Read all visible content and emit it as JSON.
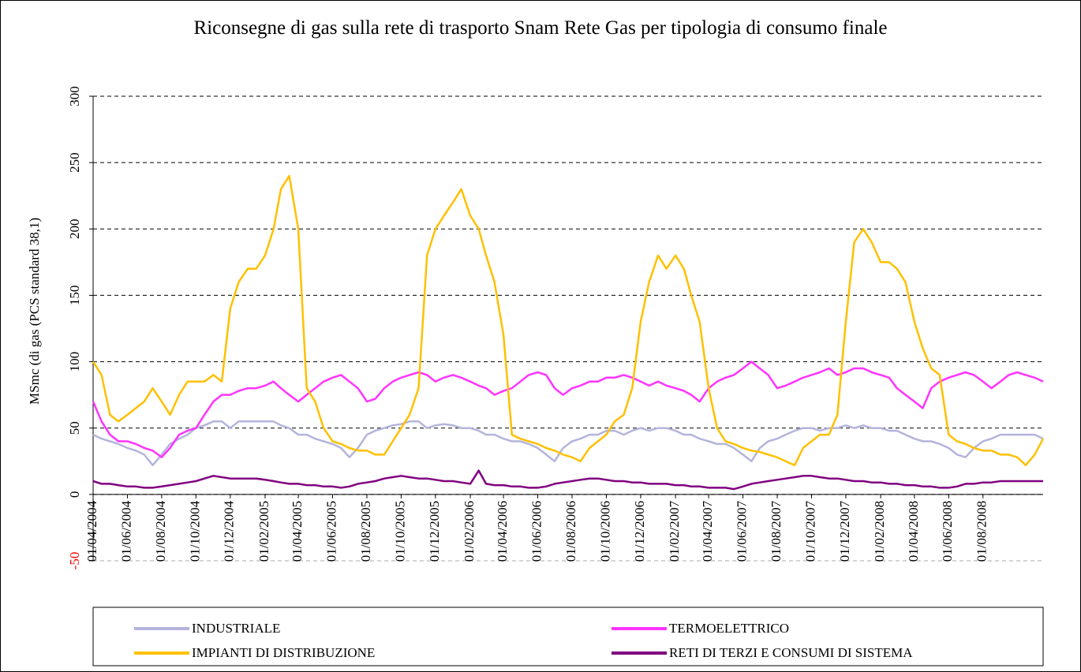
{
  "chart_data": {
    "type": "line",
    "title": "Riconsegne di gas sulla rete di trasporto Snam Rete Gas per tipologia di consumo finale",
    "y_label": "MSmc (di gas (PCS standard 38,1)",
    "ylim": [
      -50,
      300
    ],
    "yticks": [
      -50,
      0,
      50,
      100,
      150,
      200,
      250,
      300
    ],
    "negative_tick_color": "#ff0000",
    "grid": true,
    "legend": "bottom",
    "xlim": [
      "01/04/2004",
      "16/11/2008"
    ],
    "xticks": [
      "01/04/2004",
      "01/06/2004",
      "01/08/2004",
      "01/10/2004",
      "01/12/2004",
      "01/02/2005",
      "01/04/2005",
      "01/06/2005",
      "01/08/2005",
      "01/10/2005",
      "01/12/2005",
      "01/02/2006",
      "01/04/2006",
      "01/06/2006",
      "01/08/2006",
      "01/10/2006",
      "01/12/2006",
      "01/02/2007",
      "01/04/2007",
      "01/06/2007",
      "01/08/2007",
      "01/10/2007",
      "01/12/2007",
      "01/02/2008",
      "01/04/2008",
      "01/06/2008",
      "01/08/2008"
    ],
    "x": [
      "01/04/2004",
      "16/04/2004",
      "01/05/2004",
      "16/05/2004",
      "01/06/2004",
      "16/06/2004",
      "01/07/2004",
      "16/07/2004",
      "01/08/2004",
      "16/08/2004",
      "01/09/2004",
      "16/09/2004",
      "01/10/2004",
      "16/10/2004",
      "01/11/2004",
      "16/11/2004",
      "01/12/2004",
      "16/12/2004",
      "01/01/2005",
      "16/01/2005",
      "01/02/2005",
      "16/02/2005",
      "01/03/2005",
      "16/03/2005",
      "01/04/2005",
      "16/04/2005",
      "01/05/2005",
      "16/05/2005",
      "01/06/2005",
      "16/06/2005",
      "01/07/2005",
      "16/07/2005",
      "01/08/2005",
      "16/08/2005",
      "01/09/2005",
      "16/09/2005",
      "01/10/2005",
      "16/10/2005",
      "01/11/2005",
      "16/11/2005",
      "01/12/2005",
      "16/12/2005",
      "01/01/2006",
      "16/01/2006",
      "01/02/2006",
      "16/02/2006",
      "01/03/2006",
      "16/03/2006",
      "01/04/2006",
      "16/04/2006",
      "01/05/2006",
      "16/05/2006",
      "01/06/2006",
      "16/06/2006",
      "01/07/2006",
      "16/07/2006",
      "01/08/2006",
      "16/08/2006",
      "01/09/2006",
      "16/09/2006",
      "01/10/2006",
      "16/10/2006",
      "01/11/2006",
      "16/11/2006",
      "01/12/2006",
      "16/12/2006",
      "01/01/2007",
      "16/01/2007",
      "01/02/2007",
      "16/02/2007",
      "01/03/2007",
      "16/03/2007",
      "01/04/2007",
      "16/04/2007",
      "01/05/2007",
      "16/05/2007",
      "01/06/2007",
      "16/06/2007",
      "01/07/2007",
      "16/07/2007",
      "01/08/2007",
      "16/08/2007",
      "01/09/2007",
      "16/09/2007",
      "01/10/2007",
      "16/10/2007",
      "01/11/2007",
      "16/11/2007",
      "01/12/2007",
      "16/12/2007",
      "01/01/2008",
      "16/01/2008",
      "01/02/2008",
      "16/02/2008",
      "01/03/2008",
      "16/03/2008",
      "01/04/2008",
      "16/04/2008",
      "01/05/2008",
      "16/05/2008",
      "01/06/2008",
      "16/06/2008",
      "01/07/2008",
      "16/07/2008",
      "01/08/2008",
      "16/08/2008",
      "01/09/2008",
      "16/09/2008",
      "01/10/2008",
      "16/10/2008",
      "01/11/2008",
      "16/11/2008"
    ],
    "series": [
      {
        "name": "INDUSTRIALE",
        "color": "#b4b4dc",
        "values": [
          45,
          42,
          40,
          38,
          35,
          33,
          30,
          22,
          30,
          38,
          42,
          45,
          50,
          52,
          55,
          55,
          50,
          55,
          55,
          55,
          55,
          55,
          52,
          50,
          45,
          45,
          42,
          40,
          38,
          35,
          28,
          35,
          45,
          48,
          50,
          52,
          53,
          55,
          55,
          50,
          52,
          53,
          52,
          50,
          50,
          48,
          45,
          45,
          42,
          40,
          40,
          38,
          35,
          30,
          25,
          35,
          40,
          42,
          45,
          45,
          48,
          48,
          45,
          48,
          50,
          48,
          50,
          50,
          48,
          45,
          45,
          42,
          40,
          38,
          38,
          35,
          30,
          25,
          35,
          40,
          42,
          45,
          48,
          50,
          50,
          48,
          50,
          50,
          52,
          50,
          52,
          50,
          50,
          48,
          48,
          45,
          42,
          40,
          40,
          38,
          35,
          30,
          28,
          35,
          40,
          42,
          45,
          45,
          45,
          45,
          45,
          42
        ]
      },
      {
        "name": "TERMOELETTRICO",
        "color": "#ff33ff",
        "values": [
          70,
          55,
          45,
          40,
          40,
          38,
          35,
          33,
          28,
          35,
          45,
          48,
          50,
          60,
          70,
          75,
          75,
          78,
          80,
          80,
          82,
          85,
          80,
          75,
          70,
          75,
          80,
          85,
          88,
          90,
          85,
          80,
          70,
          72,
          80,
          85,
          88,
          90,
          92,
          90,
          85,
          88,
          90,
          88,
          85,
          82,
          80,
          75,
          78,
          80,
          85,
          90,
          92,
          90,
          80,
          75,
          80,
          82,
          85,
          85,
          88,
          88,
          90,
          88,
          85,
          82,
          85,
          82,
          80,
          78,
          75,
          70,
          80,
          85,
          88,
          90,
          95,
          100,
          95,
          90,
          80,
          82,
          85,
          88,
          90,
          92,
          95,
          90,
          92,
          95,
          95,
          92,
          90,
          88,
          80,
          75,
          70,
          65,
          80,
          85,
          88,
          90,
          92,
          90,
          85,
          80,
          85,
          90,
          92,
          90,
          88,
          85
        ]
      },
      {
        "name": "IMPIANTI DI DISTRIBUZIONE",
        "color": "#ffc000",
        "values": [
          100,
          90,
          60,
          55,
          60,
          65,
          70,
          80,
          70,
          60,
          75,
          85,
          85,
          85,
          90,
          85,
          140,
          160,
          170,
          170,
          180,
          200,
          230,
          240,
          200,
          80,
          70,
          50,
          40,
          38,
          35,
          33,
          33,
          30,
          30,
          40,
          50,
          60,
          80,
          180,
          200,
          210,
          220,
          230,
          210,
          200,
          180,
          160,
          120,
          45,
          42,
          40,
          38,
          35,
          33,
          30,
          28,
          25,
          35,
          40,
          45,
          55,
          60,
          80,
          130,
          160,
          180,
          170,
          180,
          170,
          150,
          130,
          80,
          50,
          40,
          38,
          35,
          33,
          32,
          30,
          28,
          25,
          22,
          35,
          40,
          45,
          45,
          60,
          130,
          190,
          200,
          190,
          175,
          175,
          170,
          160,
          130,
          110,
          95,
          90,
          45,
          40,
          38,
          35,
          33,
          33,
          30,
          30,
          28,
          22,
          30,
          42
        ]
      },
      {
        "name": "RETI DI TERZI E CONSUMI DI SISTEMA",
        "color": "#800080",
        "values": [
          10,
          8,
          8,
          7,
          6,
          6,
          5,
          5,
          6,
          7,
          8,
          9,
          10,
          12,
          14,
          13,
          12,
          12,
          12,
          12,
          11,
          10,
          9,
          8,
          8,
          7,
          7,
          6,
          6,
          5,
          6,
          8,
          9,
          10,
          12,
          13,
          14,
          13,
          12,
          12,
          11,
          10,
          10,
          9,
          8,
          18,
          8,
          7,
          7,
          6,
          6,
          5,
          5,
          6,
          8,
          9,
          10,
          11,
          12,
          12,
          11,
          10,
          10,
          9,
          9,
          8,
          8,
          8,
          7,
          7,
          6,
          6,
          5,
          5,
          5,
          4,
          6,
          8,
          9,
          10,
          11,
          12,
          13,
          14,
          14,
          13,
          12,
          12,
          11,
          10,
          10,
          9,
          9,
          8,
          8,
          7,
          7,
          6,
          6,
          5,
          5,
          6,
          8,
          8,
          9,
          9,
          10,
          10,
          10,
          10,
          10,
          10
        ]
      }
    ]
  }
}
